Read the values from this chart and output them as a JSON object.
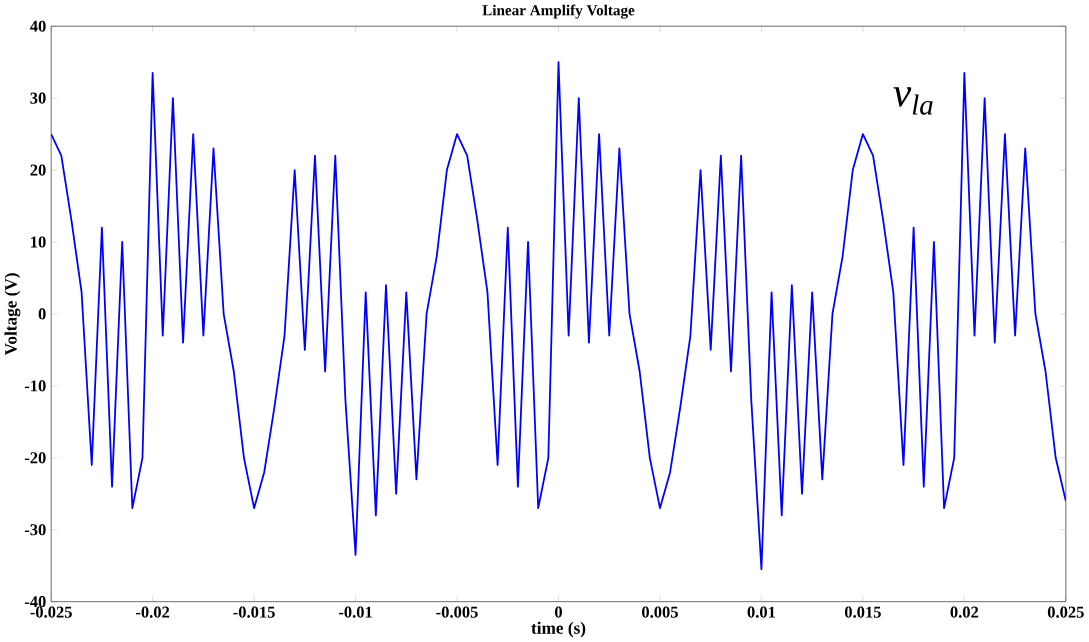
{
  "chart_data": {
    "type": "line",
    "title": "Linear Amplify Voltage",
    "xlabel": "time (s)",
    "ylabel": "Voltage (V)",
    "annotations": [
      "v$_{la}$"
    ],
    "x": [
      -0.025,
      -0.0245,
      -0.024,
      -0.0235,
      -0.023,
      -0.0225,
      -0.022,
      -0.0215,
      -0.021,
      -0.0205,
      -0.02,
      -0.0195,
      -0.019,
      -0.0185,
      -0.018,
      -0.0175,
      -0.017,
      -0.0165,
      -0.016,
      -0.0155,
      -0.015,
      -0.0145,
      -0.014,
      -0.0135,
      -0.013,
      -0.0125,
      -0.012,
      -0.0115,
      -0.011,
      -0.0105,
      -0.01,
      -0.0095,
      -0.009,
      -0.0085,
      -0.008,
      -0.0075,
      -0.007,
      -0.0065,
      -0.006,
      -0.0055,
      -0.005,
      -0.0045,
      -0.004,
      -0.0035,
      -0.003,
      -0.0025,
      -0.002,
      -0.0015,
      -0.001,
      -0.0005,
      0,
      0.0005,
      0.001,
      0.0015,
      0.002,
      0.0025,
      0.003,
      0.0035,
      0.004,
      0.0045,
      0.005,
      0.0055,
      0.006,
      0.0065,
      0.007,
      0.0075,
      0.008,
      0.0085,
      0.009,
      0.0095,
      0.01,
      0.0105,
      0.011,
      0.0115,
      0.012,
      0.0125,
      0.013,
      0.0135,
      0.014,
      0.0145,
      0.015,
      0.0155,
      0.016,
      0.0165,
      0.017,
      0.0175,
      0.018,
      0.0185,
      0.019,
      0.0195,
      0.02,
      0.0205,
      0.021,
      0.0215,
      0.022,
      0.0225,
      0.023,
      0.0235,
      0.024,
      0.0245,
      0.025
    ],
    "series": [
      {
        "color": "#0000ff",
        "values": [
          25,
          22,
          13,
          3,
          -21,
          12,
          -24,
          10,
          -27,
          -20,
          33.5,
          -3,
          30,
          -4,
          25,
          -3,
          23,
          0,
          -8,
          -20,
          -27,
          -22,
          -13,
          -3,
          20,
          -5,
          22,
          -8,
          22,
          -12,
          -33.5,
          3,
          -28,
          4,
          -25,
          3,
          -23,
          0,
          8,
          20,
          25,
          22,
          13,
          3,
          -21,
          12,
          -24,
          10,
          -27,
          -20,
          35,
          -3,
          30,
          -4,
          25,
          -3,
          23,
          0,
          -8,
          -20,
          -27,
          -22,
          -13,
          -3,
          20,
          -5,
          22,
          -8,
          22,
          -12,
          -35.5,
          3,
          -28,
          4,
          -25,
          3,
          -23,
          0,
          8,
          20,
          25,
          22,
          13,
          3,
          -21,
          12,
          -24,
          10,
          -27,
          -20,
          33.5,
          -3,
          30,
          -4,
          25,
          -3,
          23,
          0,
          -8,
          -20,
          -26
        ]
      }
    ],
    "xlim": [
      -0.025,
      0.025
    ],
    "ylim": [
      -40,
      40
    ],
    "xticks": [
      -0.025,
      -0.02,
      -0.015,
      -0.01,
      -0.005,
      0,
      0.005,
      0.01,
      0.015,
      0.02,
      0.025
    ],
    "yticks": [
      -40,
      -30,
      -20,
      -10,
      0,
      10,
      20,
      30,
      40
    ],
    "grid": false,
    "legend": false,
    "marker": "none",
    "line_style": "solid"
  }
}
